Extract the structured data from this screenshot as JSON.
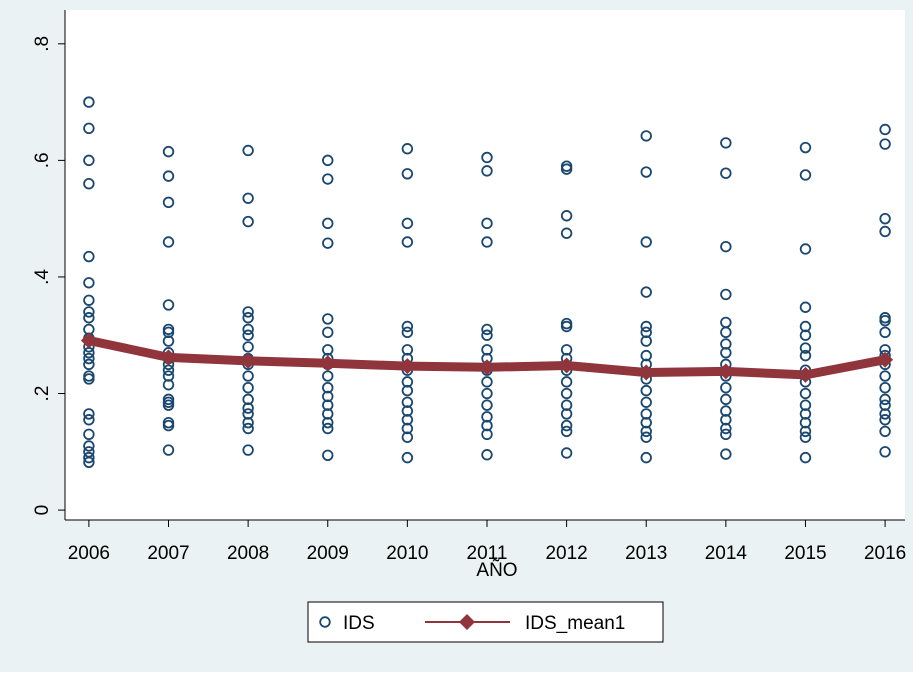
{
  "chart_data": {
    "type": "scatter",
    "x_label": "AÑO",
    "xlim": [
      2005.7,
      2016.25
    ],
    "ylim": [
      -0.017,
      0.858
    ],
    "xticks": [
      2006,
      2007,
      2008,
      2009,
      2010,
      2011,
      2012,
      2013,
      2014,
      2015,
      2016
    ],
    "yticks": [
      0,
      {
        "value": 0.2,
        "label": ".2"
      },
      {
        "value": 0.4,
        "label": ".4"
      },
      {
        "value": 0.6,
        "label": ".6"
      },
      {
        "value": 0.8,
        "label": ".8"
      }
    ],
    "series": [
      {
        "name": "IDS",
        "color": "#1a476f",
        "mode": "markers",
        "x": [
          2006,
          2006,
          2006,
          2006,
          2006,
          2006,
          2006,
          2006,
          2006,
          2006,
          2006,
          2006,
          2006,
          2006,
          2006,
          2006,
          2006,
          2006,
          2006,
          2006,
          2006,
          2006,
          2006,
          2006,
          2007,
          2007,
          2007,
          2007,
          2007,
          2007,
          2007,
          2007,
          2007,
          2007,
          2007,
          2007,
          2007,
          2007,
          2007,
          2007,
          2007,
          2007,
          2007,
          2007,
          2008,
          2008,
          2008,
          2008,
          2008,
          2008,
          2008,
          2008,
          2008,
          2008,
          2008,
          2008,
          2008,
          2008,
          2008,
          2008,
          2008,
          2008,
          2009,
          2009,
          2009,
          2009,
          2009,
          2009,
          2009,
          2009,
          2009,
          2009,
          2009,
          2009,
          2009,
          2009,
          2009,
          2009,
          2009,
          2010,
          2010,
          2010,
          2010,
          2010,
          2010,
          2010,
          2010,
          2010,
          2010,
          2010,
          2010,
          2010,
          2010,
          2010,
          2010,
          2010,
          2011,
          2011,
          2011,
          2011,
          2011,
          2011,
          2011,
          2011,
          2011,
          2011,
          2011,
          2011,
          2011,
          2011,
          2011,
          2011,
          2012,
          2012,
          2012,
          2012,
          2012,
          2012,
          2012,
          2012,
          2012,
          2012,
          2012,
          2012,
          2012,
          2012,
          2012,
          2012,
          2013,
          2013,
          2013,
          2013,
          2013,
          2013,
          2013,
          2013,
          2013,
          2013,
          2013,
          2013,
          2013,
          2013,
          2013,
          2013,
          2013,
          2014,
          2014,
          2014,
          2014,
          2014,
          2014,
          2014,
          2014,
          2014,
          2014,
          2014,
          2014,
          2014,
          2014,
          2014,
          2014,
          2014,
          2015,
          2015,
          2015,
          2015,
          2015,
          2015,
          2015,
          2015,
          2015,
          2015,
          2015,
          2015,
          2015,
          2015,
          2015,
          2015,
          2015,
          2016,
          2016,
          2016,
          2016,
          2016,
          2016,
          2016,
          2016,
          2016,
          2016,
          2016,
          2016,
          2016,
          2016,
          2016,
          2016,
          2016,
          2016
        ],
        "values": [
          0.7,
          0.655,
          0.6,
          0.56,
          0.435,
          0.39,
          0.36,
          0.34,
          0.33,
          0.31,
          0.295,
          0.28,
          0.27,
          0.26,
          0.25,
          0.23,
          0.225,
          0.165,
          0.155,
          0.13,
          0.11,
          0.1,
          0.09,
          0.082,
          0.615,
          0.573,
          0.528,
          0.46,
          0.352,
          0.31,
          0.305,
          0.29,
          0.27,
          0.26,
          0.25,
          0.24,
          0.23,
          0.215,
          0.19,
          0.185,
          0.18,
          0.15,
          0.145,
          0.103,
          0.617,
          0.535,
          0.495,
          0.34,
          0.33,
          0.31,
          0.3,
          0.28,
          0.26,
          0.25,
          0.23,
          0.21,
          0.19,
          0.175,
          0.165,
          0.15,
          0.14,
          0.103,
          0.6,
          0.568,
          0.492,
          0.458,
          0.328,
          0.305,
          0.275,
          0.26,
          0.25,
          0.23,
          0.21,
          0.195,
          0.18,
          0.165,
          0.15,
          0.14,
          0.094,
          0.62,
          0.577,
          0.492,
          0.46,
          0.315,
          0.305,
          0.275,
          0.26,
          0.24,
          0.22,
          0.205,
          0.185,
          0.17,
          0.155,
          0.14,
          0.125,
          0.09,
          0.605,
          0.582,
          0.492,
          0.46,
          0.31,
          0.3,
          0.275,
          0.26,
          0.24,
          0.22,
          0.2,
          0.18,
          0.16,
          0.145,
          0.13,
          0.095,
          0.59,
          0.585,
          0.505,
          0.475,
          0.32,
          0.315,
          0.275,
          0.26,
          0.24,
          0.22,
          0.2,
          0.18,
          0.165,
          0.145,
          0.135,
          0.098,
          0.642,
          0.58,
          0.46,
          0.374,
          0.315,
          0.305,
          0.29,
          0.265,
          0.25,
          0.225,
          0.205,
          0.185,
          0.165,
          0.15,
          0.135,
          0.125,
          0.09,
          0.63,
          0.578,
          0.452,
          0.37,
          0.322,
          0.305,
          0.285,
          0.27,
          0.25,
          0.23,
          0.21,
          0.19,
          0.17,
          0.155,
          0.14,
          0.13,
          0.096,
          0.622,
          0.575,
          0.448,
          0.348,
          0.315,
          0.3,
          0.278,
          0.265,
          0.24,
          0.22,
          0.2,
          0.18,
          0.165,
          0.15,
          0.135,
          0.125,
          0.09,
          0.653,
          0.628,
          0.5,
          0.478,
          0.33,
          0.325,
          0.305,
          0.275,
          0.265,
          0.25,
          0.23,
          0.21,
          0.19,
          0.18,
          0.165,
          0.155,
          0.135,
          0.1
        ]
      },
      {
        "name": "IDS_mean1",
        "color": "#90353b",
        "mode": "lines+markers",
        "x": [
          2006,
          2007,
          2008,
          2009,
          2010,
          2011,
          2012,
          2013,
          2014,
          2015,
          2016
        ],
        "values": [
          0.291,
          0.262,
          0.256,
          0.252,
          0.247,
          0.245,
          0.248,
          0.236,
          0.238,
          0.232,
          0.258
        ]
      }
    ]
  }
}
